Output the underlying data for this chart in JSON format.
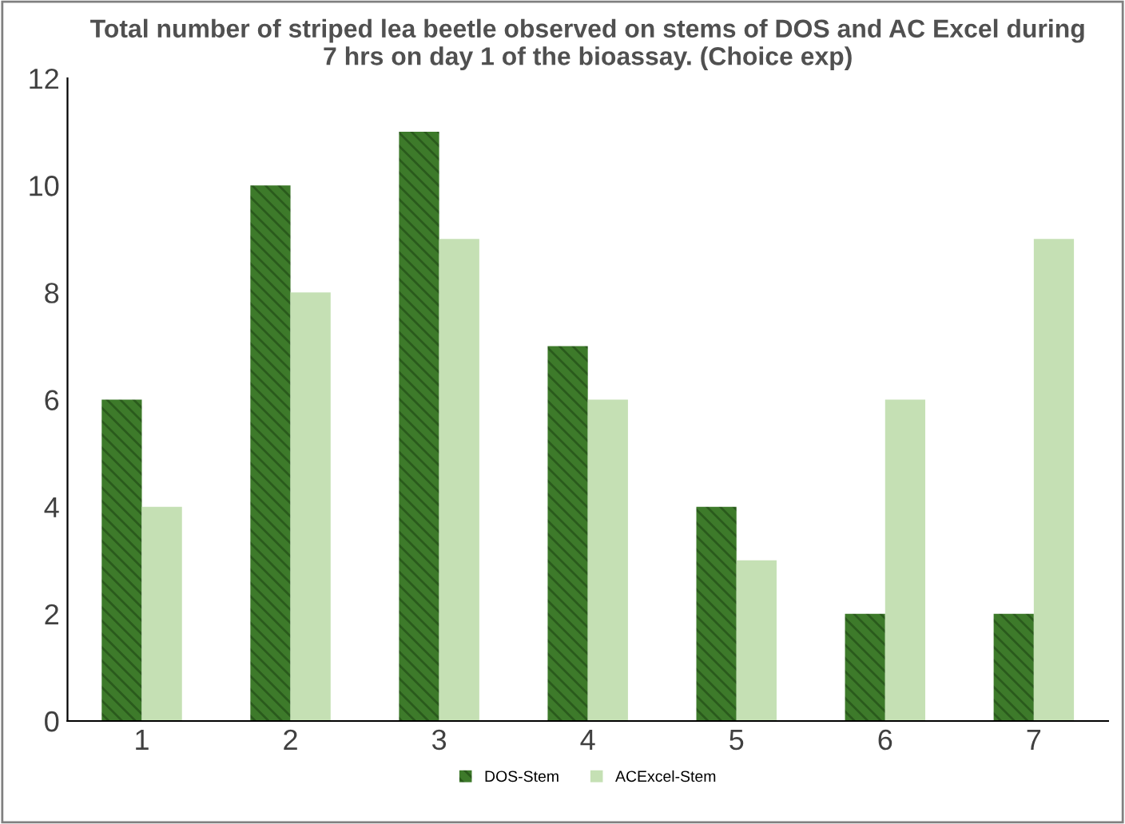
{
  "chart_data": {
    "type": "bar",
    "title": "Total number of striped lea beetle observed on stems of DOS and AC Excel during\n7 hrs on day 1 of the bioassay. (Choice exp)",
    "categories": [
      "1",
      "2",
      "3",
      "4",
      "5",
      "6",
      "7"
    ],
    "series": [
      {
        "name": "DOS-Stem",
        "color": "#3d7a2a",
        "values": [
          6,
          10,
          11,
          7,
          4,
          2,
          2
        ]
      },
      {
        "name": "ACExcel-Stem",
        "color": "#c5e0b4",
        "values": [
          4,
          8,
          9,
          6,
          3,
          6,
          9
        ]
      }
    ],
    "ylim": [
      0,
      12
    ],
    "yticks": [
      0,
      2,
      4,
      6,
      8,
      10,
      12
    ],
    "grid": false,
    "legend": "bottom"
  }
}
